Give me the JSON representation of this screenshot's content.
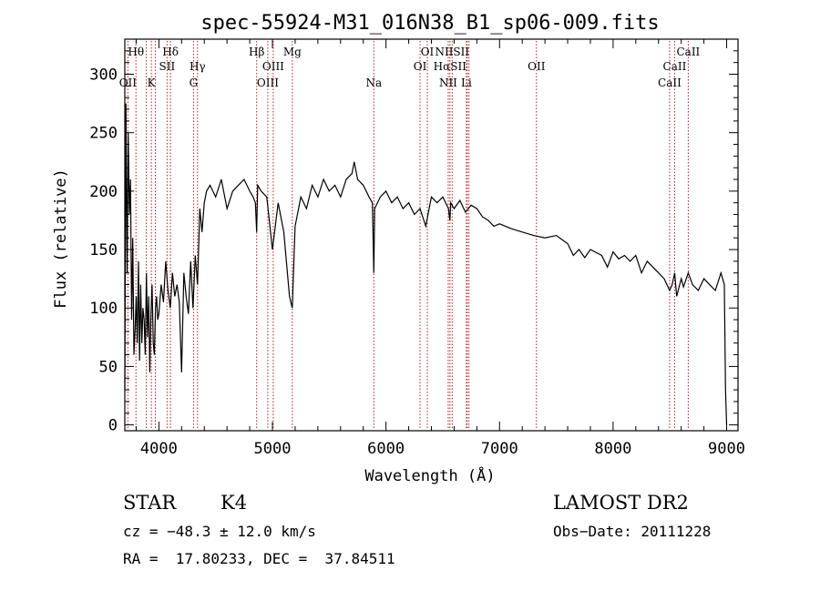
{
  "chart_data": {
    "type": "line",
    "title": "spec-55924-M31_016N38_B1_sp06-009.fits",
    "xlabel": "Wavelength (Å)",
    "ylabel": "Flux (relative)",
    "xlim": [
      3700,
      9100
    ],
    "ylim": [
      -5,
      330
    ],
    "x_ticks": [
      4000,
      5000,
      6000,
      7000,
      8000,
      9000
    ],
    "y_ticks": [
      0,
      50,
      100,
      150,
      200,
      250,
      300
    ],
    "grid": false,
    "series": [
      {
        "x": [
          3700,
          3710,
          3720,
          3730,
          3740,
          3750,
          3760,
          3770,
          3780,
          3790,
          3800,
          3810,
          3820,
          3830,
          3840,
          3850,
          3860,
          3870,
          3880,
          3890,
          3900,
          3910,
          3920,
          3930,
          3940,
          3950,
          3960,
          3970,
          3980,
          3990,
          4000,
          4020,
          4040,
          4060,
          4080,
          4100,
          4120,
          4140,
          4160,
          4180,
          4200,
          4220,
          4240,
          4260,
          4280,
          4300,
          4320,
          4340,
          4360,
          4380,
          4400,
          4420,
          4450,
          4500,
          4550,
          4600,
          4650,
          4700,
          4750,
          4800,
          4830,
          4850,
          4861,
          4870,
          4900,
          4950,
          5000,
          5050,
          5100,
          5150,
          5175,
          5200,
          5250,
          5300,
          5350,
          5400,
          5450,
          5500,
          5550,
          5600,
          5650,
          5700,
          5720,
          5750,
          5800,
          5850,
          5880,
          5893,
          5900,
          5950,
          6000,
          6050,
          6100,
          6150,
          6200,
          6250,
          6300,
          6350,
          6400,
          6450,
          6500,
          6550,
          6563,
          6570,
          6600,
          6650,
          6700,
          6750,
          6800,
          6850,
          6900,
          6950,
          7000,
          7100,
          7200,
          7300,
          7400,
          7500,
          7600,
          7650,
          7700,
          7750,
          7800,
          7900,
          7950,
          8000,
          8050,
          8100,
          8150,
          8200,
          8250,
          8300,
          8350,
          8400,
          8450,
          8498,
          8520,
          8542,
          8560,
          8600,
          8620,
          8662,
          8700,
          8750,
          8800,
          8850,
          8900,
          8950,
          8980,
          8990,
          9000
        ],
        "y": [
          30,
          275,
          130,
          250,
          180,
          210,
          90,
          160,
          60,
          80,
          110,
          70,
          140,
          55,
          120,
          70,
          100,
          90,
          60,
          130,
          75,
          110,
          45,
          95,
          120,
          70,
          60,
          100,
          110,
          90,
          95,
          120,
          105,
          140,
          115,
          100,
          130,
          110,
          120,
          105,
          45,
          130,
          110,
          95,
          140,
          100,
          145,
          120,
          185,
          165,
          190,
          200,
          205,
          195,
          210,
          185,
          200,
          205,
          210,
          200,
          195,
          190,
          165,
          205,
          200,
          195,
          150,
          190,
          165,
          110,
          100,
          170,
          195,
          185,
          205,
          195,
          210,
          200,
          205,
          195,
          210,
          215,
          225,
          210,
          205,
          195,
          190,
          130,
          185,
          195,
          200,
          190,
          195,
          185,
          190,
          180,
          185,
          170,
          195,
          190,
          195,
          185,
          175,
          190,
          185,
          192,
          182,
          188,
          185,
          178,
          175,
          170,
          172,
          168,
          165,
          162,
          160,
          162,
          155,
          145,
          150,
          143,
          150,
          145,
          135,
          148,
          142,
          145,
          140,
          145,
          130,
          140,
          135,
          130,
          125,
          115,
          120,
          130,
          110,
          125,
          118,
          130,
          120,
          115,
          125,
          120,
          115,
          130,
          120,
          30,
          0
        ]
      }
    ],
    "lines_top": [
      {
        "label": "Hθ",
        "x": 3798
      },
      {
        "label": "Hδ",
        "x": 4102
      },
      {
        "label": "Hβ",
        "x": 4861
      },
      {
        "label": "Mg",
        "x": 5175
      },
      {
        "label": "OI",
        "x": 6364
      },
      {
        "label": "NIISII",
        "x": 6583
      },
      {
        "label": "CaII",
        "x": 8662
      }
    ],
    "lines_mid": [
      {
        "label": "SII",
        "x": 4072
      },
      {
        "label": "Hγ",
        "x": 4340
      },
      {
        "label": "OIII",
        "x": 5007
      },
      {
        "label": "OI",
        "x": 6300
      },
      {
        "label": "HαSII",
        "x": 6563
      },
      {
        "label": "OII",
        "x": 7325
      },
      {
        "label": "CaII",
        "x": 8542
      }
    ],
    "lines_low": [
      {
        "label": "OII",
        "x": 3727
      },
      {
        "label": "K",
        "x": 3934
      },
      {
        "label": "G",
        "x": 4305
      },
      {
        "label": "OIII",
        "x": 4959
      },
      {
        "label": "Na",
        "x": 5893
      },
      {
        "label": "NII",
        "x": 6548
      },
      {
        "label": "Li",
        "x": 6708
      },
      {
        "label": "CaII",
        "x": 8498
      }
    ],
    "line_positions": [
      3727,
      3798,
      3889,
      3934,
      3969,
      4072,
      4102,
      4305,
      4340,
      4861,
      4959,
      5007,
      5175,
      5893,
      6300,
      6364,
      6548,
      6563,
      6583,
      6708,
      6716,
      6731,
      7325,
      8498,
      8542,
      8662
    ],
    "colors": {
      "spectrum": "#000000",
      "line_markers": "#b22222"
    }
  },
  "info": {
    "class": "STAR",
    "subclass": "K4",
    "survey": "LAMOST DR2",
    "cz": "cz = −48.3 ± 12.0 km/s",
    "obs_date": "Obs−Date: 20111228",
    "radec": "RA =  17.80233, DEC =  37.84511"
  }
}
